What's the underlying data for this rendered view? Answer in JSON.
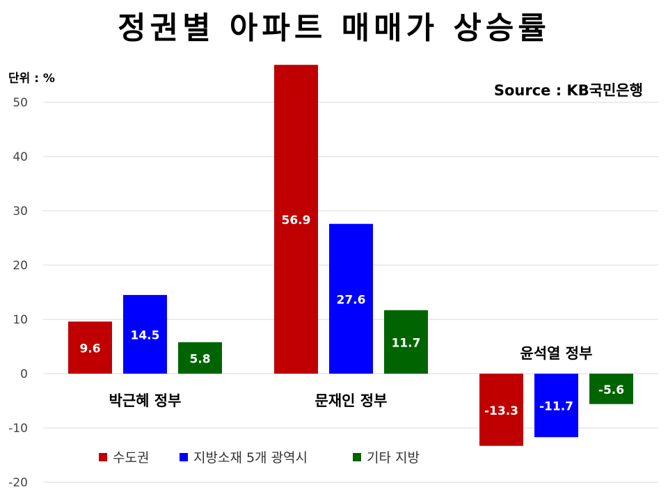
{
  "title": "정권별 아파트 매매가 상승률",
  "unit_label": "단위 : %",
  "source": "Source :  KB국민은행",
  "chart_data": {
    "type": "bar",
    "categories": [
      "박근혜 정부",
      "문재인 정부",
      "윤석열 정부"
    ],
    "series": [
      {
        "name": "수도권",
        "color": "#c00000",
        "values": [
          9.6,
          56.9,
          -13.3
        ]
      },
      {
        "name": "지방소재 5개 광역시",
        "color": "#0000ff",
        "values": [
          14.5,
          27.6,
          -11.7
        ]
      },
      {
        "name": "기타 지방",
        "color": "#006400",
        "values": [
          5.8,
          11.7,
          -5.6
        ]
      }
    ],
    "data_labels": [
      [
        "9.6",
        "56.9",
        "-13.3"
      ],
      [
        "14.5",
        "27.6",
        "-11.7"
      ],
      [
        "5.8",
        "11.7",
        "-5.6"
      ]
    ],
    "ylim": [
      -20,
      55
    ],
    "yticks": [
      "50",
      "40",
      "30",
      "20",
      "10",
      "0",
      "-10",
      "-20"
    ],
    "grid": true,
    "legend_position": "bottom-left"
  }
}
